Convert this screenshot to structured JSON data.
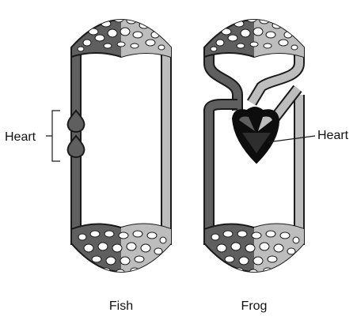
{
  "labels": {
    "fish": "Fish",
    "frog": "Frog",
    "fish_heart": "Heart",
    "frog_heart": "Heart"
  },
  "colors": {
    "deoxygenated": "#5f5f5f",
    "oxygenated": "#bdbdbd",
    "outline": "#1a1a1a",
    "heart_dark": "#0d0d0d",
    "background": "#ffffff"
  }
}
